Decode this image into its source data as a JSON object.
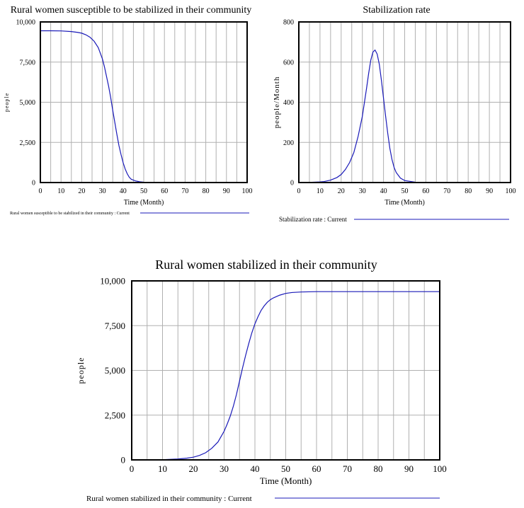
{
  "series_color": "#1a1ab8",
  "grid_color": "#b0b0b0",
  "chart_data": [
    {
      "type": "line",
      "title": "Rural women susceptible to be stabilized in their community",
      "xlabel": "Time (Month)",
      "ylabel": "people",
      "xlim": [
        0,
        100
      ],
      "ylim": [
        0,
        10000
      ],
      "x_ticks": [
        0,
        10,
        20,
        30,
        40,
        50,
        60,
        70,
        80,
        90,
        100
      ],
      "x_tick_labels": [
        "0",
        "10",
        "20",
        "30",
        "40",
        "50",
        "60",
        "70",
        "80",
        "90",
        "100"
      ],
      "y_ticks": [
        0,
        2500,
        5000,
        7500,
        10000
      ],
      "y_tick_labels": [
        "0",
        "2,500",
        "5,000",
        "7,500",
        "10,000"
      ],
      "grid": true,
      "legend": "Rural women susceptible to be stabilized in their community : Current",
      "series": [
        {
          "name": "Current",
          "x": [
            0,
            5,
            10,
            15,
            18,
            20,
            22,
            24,
            26,
            28,
            30,
            31,
            32,
            33,
            34,
            35,
            36,
            37,
            38,
            39,
            40,
            41,
            42,
            43,
            44,
            46,
            48,
            50,
            55,
            60,
            70,
            80,
            90,
            100
          ],
          "y": [
            9450,
            9450,
            9440,
            9400,
            9350,
            9300,
            9200,
            9050,
            8800,
            8400,
            7700,
            7200,
            6600,
            6000,
            5300,
            4500,
            3750,
            3000,
            2300,
            1750,
            1250,
            850,
            550,
            330,
            200,
            100,
            50,
            25,
            5,
            0,
            0,
            0,
            0,
            0
          ]
        }
      ]
    },
    {
      "type": "line",
      "title": "Stabilization rate",
      "xlabel": "Time (Month)",
      "ylabel": "people/Month",
      "xlim": [
        0,
        100
      ],
      "ylim": [
        0,
        800
      ],
      "x_ticks": [
        0,
        10,
        20,
        30,
        40,
        50,
        60,
        70,
        80,
        90,
        100
      ],
      "x_tick_labels": [
        "0",
        "10",
        "20",
        "30",
        "40",
        "50",
        "60",
        "70",
        "80",
        "90",
        "100"
      ],
      "y_ticks": [
        0,
        200,
        400,
        600,
        800
      ],
      "y_tick_labels": [
        "0",
        "200",
        "400",
        "600",
        "800"
      ],
      "grid": true,
      "legend": "Stabilization rate : Current",
      "series": [
        {
          "name": "Current",
          "x": [
            0,
            5,
            10,
            12,
            15,
            18,
            20,
            22,
            24,
            26,
            28,
            30,
            31,
            32,
            33,
            34,
            35,
            36,
            37,
            38,
            39,
            40,
            41,
            42,
            43,
            44,
            45,
            46,
            48,
            50,
            55,
            60,
            70,
            80,
            90,
            100
          ],
          "y": [
            0,
            1,
            3,
            5,
            12,
            25,
            40,
            65,
            100,
            150,
            230,
            330,
            400,
            470,
            545,
            610,
            650,
            660,
            640,
            590,
            510,
            420,
            330,
            245,
            170,
            115,
            75,
            50,
            22,
            10,
            2,
            0,
            0,
            0,
            0,
            0
          ]
        }
      ]
    },
    {
      "type": "line",
      "title": "Rural women stabilized in their community",
      "xlabel": "Time (Month)",
      "ylabel": "people",
      "xlim": [
        0,
        100
      ],
      "ylim": [
        0,
        10000
      ],
      "x_ticks": [
        0,
        10,
        20,
        30,
        40,
        50,
        60,
        70,
        80,
        90,
        100
      ],
      "x_tick_labels": [
        "0",
        "10",
        "20",
        "30",
        "40",
        "50",
        "60",
        "70",
        "80",
        "90",
        "100"
      ],
      "y_ticks": [
        0,
        2500,
        5000,
        7500,
        10000
      ],
      "y_tick_labels": [
        "0",
        "2,500",
        "5,000",
        "7,500",
        "10,000"
      ],
      "grid": true,
      "legend": "Rural women stabilized in their community : Current",
      "series": [
        {
          "name": "Current",
          "x": [
            0,
            5,
            10,
            15,
            18,
            20,
            22,
            24,
            26,
            28,
            30,
            31,
            32,
            33,
            34,
            35,
            36,
            37,
            38,
            39,
            40,
            41,
            42,
            43,
            44,
            45,
            46,
            48,
            50,
            52,
            55,
            60,
            65,
            70,
            80,
            90,
            100
          ],
          "y": [
            0,
            0,
            10,
            50,
            100,
            150,
            250,
            400,
            650,
            1000,
            1600,
            2000,
            2450,
            3000,
            3650,
            4400,
            5150,
            5850,
            6500,
            7100,
            7600,
            8000,
            8350,
            8600,
            8800,
            8950,
            9050,
            9200,
            9300,
            9350,
            9380,
            9400,
            9400,
            9400,
            9400,
            9400,
            9400
          ]
        }
      ]
    }
  ]
}
